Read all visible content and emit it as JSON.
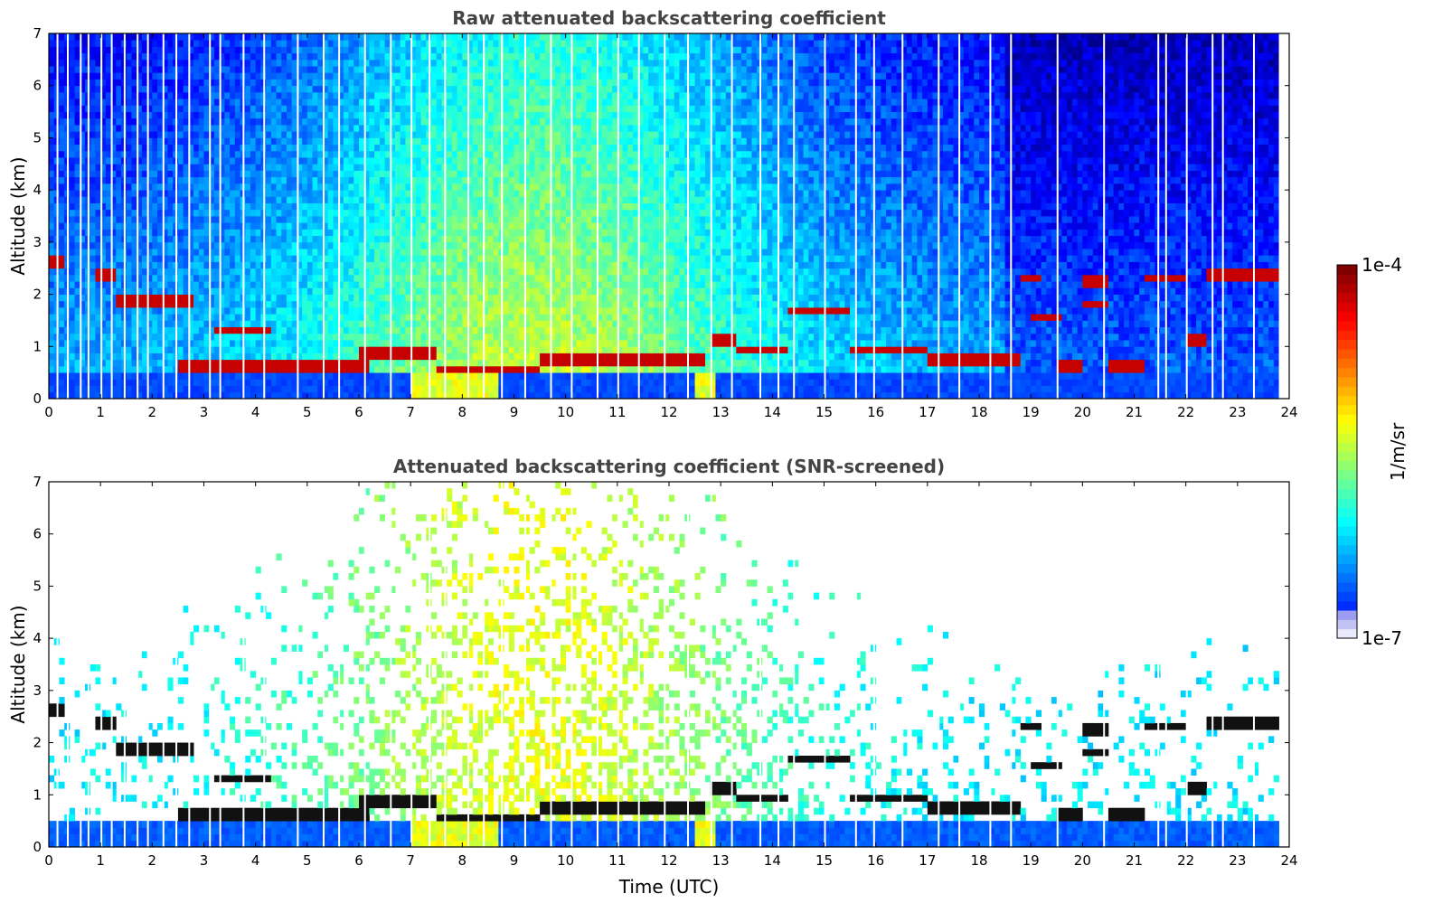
{
  "chart_data": [
    {
      "type": "heatmap",
      "title": "Raw attenuated backscattering coefficient",
      "xlabel": "",
      "ylabel": "Altitude (km)",
      "xlim": [
        0,
        24
      ],
      "ylim": [
        0,
        7
      ],
      "x_ticks": [
        "0",
        "1",
        "2",
        "3",
        "4",
        "5",
        "6",
        "7",
        "8",
        "9",
        "10",
        "11",
        "12",
        "13",
        "14",
        "15",
        "16",
        "17",
        "18",
        "19",
        "20",
        "21",
        "22",
        "23",
        "24"
      ],
      "y_ticks": [
        "0",
        "1",
        "2",
        "3",
        "4",
        "5",
        "6",
        "7"
      ],
      "data_end_time": 23.8,
      "cloud_layers": [
        {
          "t0": 0.0,
          "t1": 0.3,
          "alt": 2.6
        },
        {
          "t0": 0.9,
          "t1": 1.3,
          "alt": 2.35
        },
        {
          "t0": 1.3,
          "t1": 2.8,
          "alt": 1.85
        },
        {
          "t0": 3.2,
          "t1": 4.3,
          "alt": 1.3
        },
        {
          "t0": 2.5,
          "t1": 5.0,
          "alt": 0.58
        },
        {
          "t0": 5.0,
          "t1": 6.2,
          "alt": 0.65
        },
        {
          "t0": 6.0,
          "t1": 7.5,
          "alt": 0.9
        },
        {
          "t0": 7.5,
          "t1": 9.5,
          "alt": 0.55
        },
        {
          "t0": 9.5,
          "t1": 12.7,
          "alt": 0.75
        },
        {
          "t0": 12.8,
          "t1": 13.3,
          "alt": 1.1
        },
        {
          "t0": 13.3,
          "t1": 14.3,
          "alt": 0.95
        },
        {
          "t0": 14.3,
          "t1": 15.5,
          "alt": 1.7
        },
        {
          "t0": 15.5,
          "t1": 17.0,
          "alt": 0.95
        },
        {
          "t0": 17.0,
          "t1": 18.8,
          "alt": 0.75
        },
        {
          "t0": 18.8,
          "t1": 19.2,
          "alt": 2.3
        },
        {
          "t0": 19.0,
          "t1": 19.6,
          "alt": 1.55
        },
        {
          "t0": 19.5,
          "t1": 20.0,
          "alt": 0.65
        },
        {
          "t0": 20.0,
          "t1": 20.5,
          "alt": 2.25
        },
        {
          "t0": 20.0,
          "t1": 20.5,
          "alt": 1.8
        },
        {
          "t0": 20.5,
          "t1": 21.2,
          "alt": 0.6
        },
        {
          "t0": 21.2,
          "t1": 22.0,
          "alt": 2.3
        },
        {
          "t0": 22.0,
          "t1": 22.4,
          "alt": 1.15
        },
        {
          "t0": 22.4,
          "t1": 23.8,
          "alt": 2.35
        }
      ],
      "data_gaps_utc": [
        0.15,
        0.35,
        0.6,
        0.75,
        1.0,
        1.2,
        1.45,
        1.7,
        1.9,
        2.2,
        2.45,
        2.7,
        3.1,
        3.3,
        3.75,
        4.15,
        4.8,
        5.3,
        5.6,
        6.1,
        6.6,
        7.0,
        7.35,
        7.65,
        8.1,
        8.4,
        8.75,
        9.2,
        9.7,
        10.1,
        10.6,
        11.0,
        11.4,
        11.9,
        12.35,
        12.8,
        13.2,
        13.75,
        14.1,
        14.4,
        15.0,
        15.6,
        15.95,
        16.5,
        17.2,
        17.6,
        18.2,
        18.6,
        19.5,
        20.4,
        21.45,
        21.6,
        22.0,
        22.5,
        22.7,
        23.3
      ]
    },
    {
      "type": "heatmap",
      "title": "Attenuated backscattering coefficient (SNR-screened)",
      "xlabel": "Time (UTC)",
      "ylabel": "Altitude (km)",
      "xlim": [
        0,
        24
      ],
      "ylim": [
        0,
        7
      ],
      "x_ticks": [
        "0",
        "1",
        "2",
        "3",
        "4",
        "5",
        "6",
        "7",
        "8",
        "9",
        "10",
        "11",
        "12",
        "13",
        "14",
        "15",
        "16",
        "17",
        "18",
        "19",
        "20",
        "21",
        "22",
        "23",
        "24"
      ],
      "y_ticks": [
        "0",
        "1",
        "2",
        "3",
        "4",
        "5",
        "6",
        "7"
      ],
      "data_end_time": 23.8
    }
  ],
  "colorbar": {
    "label": "1/m/sr",
    "max_label": "1e-4",
    "min_label": "1e-7",
    "scale": "log",
    "colormap": "jet"
  }
}
